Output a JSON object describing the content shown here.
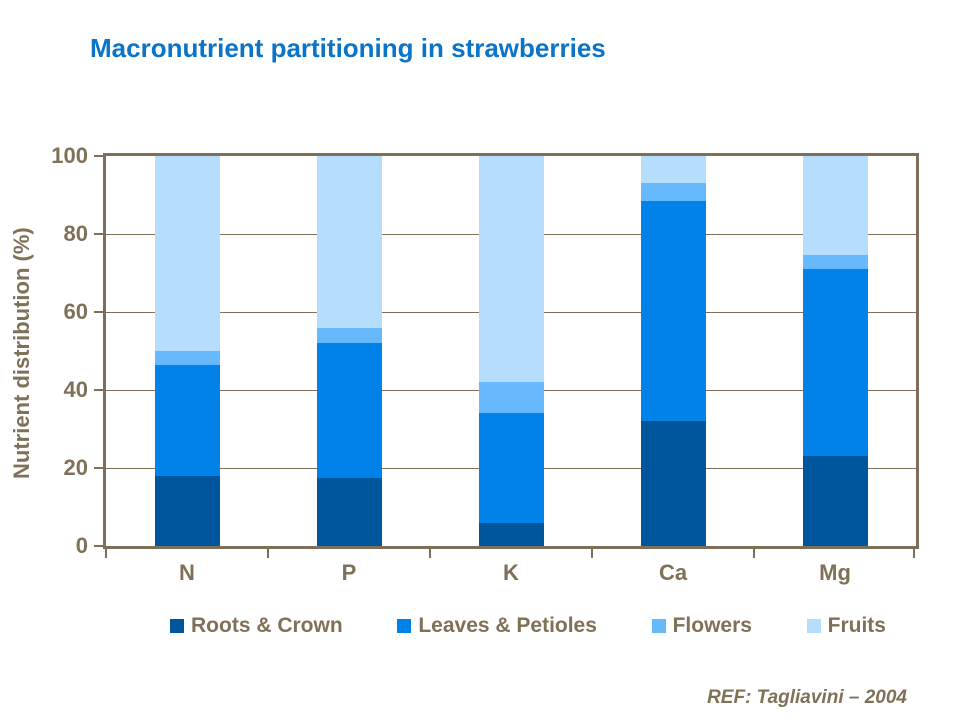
{
  "title": "Macronutrient partitioning in strawberries",
  "footer": {
    "ref": "REF: Tagliavini – 2004"
  },
  "colors": {
    "title_text": "#0a74c9",
    "axis_text": "#7f7058",
    "axis_line": "#7e6f5b",
    "background": "#ffffff"
  },
  "chart_data": {
    "type": "bar",
    "stacked": true,
    "title": "Macronutrient partitioning in strawberries",
    "categories": [
      "N",
      "P",
      "K",
      "Ca",
      "Mg"
    ],
    "series": [
      {
        "name": "Roots & Crown",
        "color": "#00569d",
        "values": [
          18,
          17.5,
          6,
          32,
          23
        ]
      },
      {
        "name": "Leaves & Petioles",
        "color": "#0082e8",
        "values": [
          28.5,
          34.5,
          28,
          56.5,
          48
        ]
      },
      {
        "name": "Flowers",
        "color": "#66b9fc",
        "values": [
          3.5,
          4,
          8,
          4.5,
          3.5
        ]
      },
      {
        "name": "Fruits",
        "color": "#b5ddfc",
        "values": [
          50,
          44,
          58,
          7,
          25.5
        ]
      }
    ],
    "xlabel": "",
    "ylabel": "Nutrient distribution (%)",
    "ylim": [
      0,
      100
    ],
    "yticks": [
      0,
      20,
      40,
      60,
      80,
      100
    ],
    "grid": true,
    "legend_position": "bottom"
  }
}
